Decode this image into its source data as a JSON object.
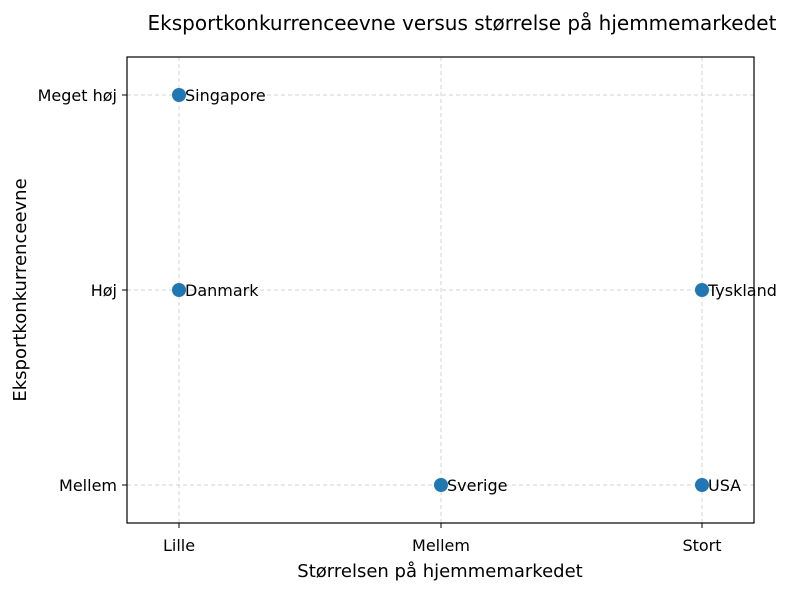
{
  "chart_data": {
    "type": "scatter",
    "title": "Eksportkonkurrenceevne versus størrelse på hjemmemarkedet",
    "xlabel": "Størrelsen på hjemmemarkedet",
    "ylabel": "Eksportkonkurrenceevne",
    "x_categories": [
      "Lille",
      "Mellem",
      "Stort"
    ],
    "y_categories": [
      "Mellem",
      "Høj",
      "Meget høj"
    ],
    "grid": true,
    "points": [
      {
        "label": "Danmark",
        "x": "Lille",
        "y": "Høj"
      },
      {
        "label": "Sverige",
        "x": "Mellem",
        "y": "Mellem"
      },
      {
        "label": "Tyskland",
        "x": "Stort",
        "y": "Høj"
      },
      {
        "label": "USA",
        "x": "Stort",
        "y": "Mellem"
      },
      {
        "label": "Singapore",
        "x": "Lille",
        "y": "Meget høj"
      }
    ],
    "marker_color": "#1f77b4"
  }
}
